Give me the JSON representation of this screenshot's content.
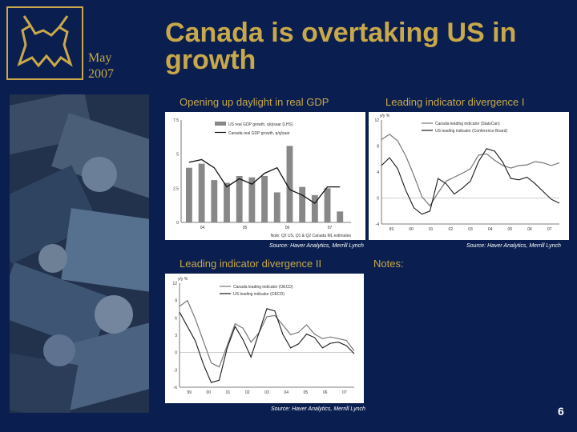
{
  "slide": {
    "date_month": "May",
    "date_year": "2007",
    "title": "Canada is overtaking US in growth",
    "notes_label": "Notes:",
    "page_number": "6"
  },
  "colors": {
    "gold": "#c8a84a",
    "navy": "#0a1f4f",
    "bar_gray": "#888888",
    "line_black": "#111111"
  },
  "chart_data": [
    {
      "type": "bar",
      "title": "Opening up daylight in real GDP",
      "legend": [
        "US real GDP growth, q/q/saar (LHS)",
        "Canada real GDP growth, q/q/saar"
      ],
      "series": [
        {
          "name": "US real GDP growth",
          "kind": "bar",
          "values": [
            4.0,
            4.3,
            3.1,
            2.9,
            3.4,
            3.3,
            3.4,
            2.2,
            5.6,
            2.6,
            2.0,
            2.5,
            0.8
          ]
        },
        {
          "name": "Canada real GDP growth",
          "kind": "line",
          "values": [
            4.4,
            4.6,
            4.0,
            2.6,
            3.2,
            2.8,
            3.6,
            4.0,
            2.4,
            2.0,
            1.4,
            2.6,
            2.6
          ]
        }
      ],
      "x_ticks": [
        "04",
        "05",
        "06",
        "07"
      ],
      "y_ticks": [
        "0",
        "2.5",
        "5",
        "7.5"
      ],
      "ylim": [
        0,
        7.5
      ],
      "note": "Note: Q2 US, Q1 & Q2 Canada ML estimates",
      "source": "Source: Haver Analytics, Merrill Lynch"
    },
    {
      "type": "line",
      "title": "Leading indicator divergence I",
      "ylabel": "y/y %",
      "legend": [
        "Canada leading indicator (StatsCan)",
        "US leading indicator (Conference Board)"
      ],
      "series": [
        {
          "name": "Canada leading indicator (StatsCan)",
          "values": [
            9.0,
            9.8,
            8.8,
            6.5,
            3.5,
            0.2,
            -1.2,
            0.8,
            2.6,
            3.2,
            3.8,
            4.5,
            6.6,
            6.8,
            5.8,
            5.0,
            4.6,
            5.0,
            5.1,
            5.6,
            5.4,
            5.0,
            5.4
          ]
        },
        {
          "name": "US leading indicator (Conference Board)",
          "values": [
            5.0,
            6.2,
            4.5,
            1.2,
            -1.5,
            -2.5,
            -2.0,
            3.0,
            2.2,
            0.6,
            1.5,
            2.6,
            5.6,
            7.6,
            7.2,
            5.5,
            3.0,
            2.8,
            3.2,
            2.2,
            1.0,
            -0.2,
            -0.8
          ]
        }
      ],
      "x_ticks": [
        "99",
        "00",
        "01",
        "02",
        "03",
        "04",
        "05",
        "06",
        "07"
      ],
      "y_ticks": [
        "-4",
        "0",
        "4",
        "8",
        "12"
      ],
      "ylim": [
        -4,
        12
      ],
      "source": "Source: Haver Analytics, Merrill Lynch"
    },
    {
      "type": "line",
      "title": "Leading indicator divergence II",
      "ylabel": "y/y %",
      "legend": [
        "Canada leading indicator (OECD)",
        "US leading indicator (OECD)"
      ],
      "series": [
        {
          "name": "Canada leading indicator (OECD)",
          "values": [
            8.0,
            9.0,
            5.8,
            2.0,
            -1.8,
            -2.5,
            1.2,
            5.0,
            4.2,
            1.8,
            3.4,
            6.2,
            6.4,
            4.8,
            3.1,
            3.5,
            4.8,
            3.2,
            2.4,
            2.7,
            2.4,
            2.1,
            0.3
          ]
        },
        {
          "name": "US leading indicator (OECD)",
          "values": [
            7.0,
            4.5,
            2.0,
            -2.0,
            -5.2,
            -4.8,
            0.8,
            4.5,
            2.2,
            -0.8,
            3.4,
            7.6,
            7.2,
            3.2,
            0.8,
            1.5,
            3.2,
            2.6,
            0.8,
            1.6,
            1.8,
            1.2,
            -0.2
          ]
        }
      ],
      "x_ticks": [
        "99",
        "00",
        "01",
        "02",
        "03",
        "04",
        "05",
        "06",
        "07"
      ],
      "y_ticks": [
        "-6",
        "-3",
        "0",
        "3",
        "6",
        "9",
        "12"
      ],
      "ylim": [
        -6,
        12
      ],
      "source": "Source: Haver Analytics, Merrill Lynch"
    }
  ]
}
